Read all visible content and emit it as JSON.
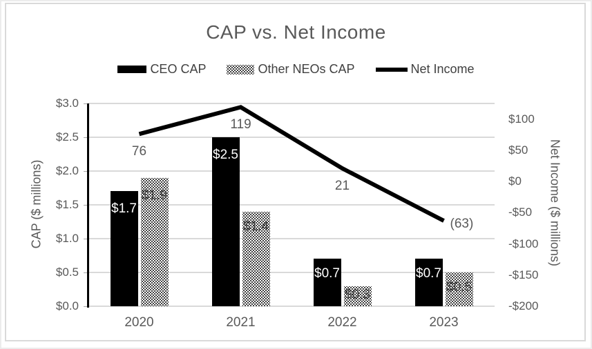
{
  "chart_data": {
    "type": "combo-bar-line",
    "title": "CAP vs. Net Income",
    "categories": [
      "2020",
      "2021",
      "2022",
      "2023"
    ],
    "bar_series": [
      {
        "name": "CEO CAP",
        "style": "solid",
        "values": [
          1.7,
          2.5,
          0.7,
          0.7
        ],
        "labels": [
          "$1.7",
          "$2.5",
          "$0.7",
          "$0.7"
        ],
        "label_color": "#ffffff"
      },
      {
        "name": "Other NEOs CAP",
        "style": "dotted",
        "values": [
          1.9,
          1.4,
          0.3,
          0.5
        ],
        "labels": [
          "$1.9",
          "$1.4",
          "$0.3",
          "$0.5"
        ],
        "label_color": "#3f3f3f"
      }
    ],
    "line_series": {
      "name": "Net Income",
      "values": [
        76,
        119,
        21,
        -63
      ],
      "labels": [
        "76",
        "119",
        "21",
        "(63)"
      ],
      "label_placement": [
        "below",
        "below",
        "below",
        "right"
      ],
      "color": "#000000"
    },
    "left_axis": {
      "title": "CAP ($ millions)",
      "tick_labels": [
        "$3.0",
        "$2.5",
        "$2.0",
        "$1.5",
        "$1.0",
        "$0.5",
        "$0.0"
      ],
      "tick_values": [
        3.0,
        2.5,
        2.0,
        1.5,
        1.0,
        0.5,
        0.0
      ],
      "min": 0,
      "max": 3.0
    },
    "right_axis": {
      "title": "Net Income ($ millions)",
      "tick_labels": [
        "$100",
        "$50",
        "$0",
        "-$50",
        "-$100",
        "-$150",
        "-$200"
      ],
      "tick_values": [
        100,
        50,
        0,
        -50,
        -100,
        -150,
        -200
      ],
      "min": -200,
      "max": 125
    },
    "legend": [
      {
        "label": "CEO CAP",
        "swatch": "bar-solid"
      },
      {
        "label": "Other NEOs CAP",
        "swatch": "bar-dotted"
      },
      {
        "label": "Net Income",
        "swatch": "line"
      }
    ],
    "colors": {
      "bar": "#000000",
      "line": "#000000",
      "grid": "#d9d9d9",
      "axis_text": "#595959",
      "title_text": "#595959",
      "frame_border": "#d9d9d9"
    },
    "legend_position": "top",
    "grid": "horizontal-on"
  }
}
